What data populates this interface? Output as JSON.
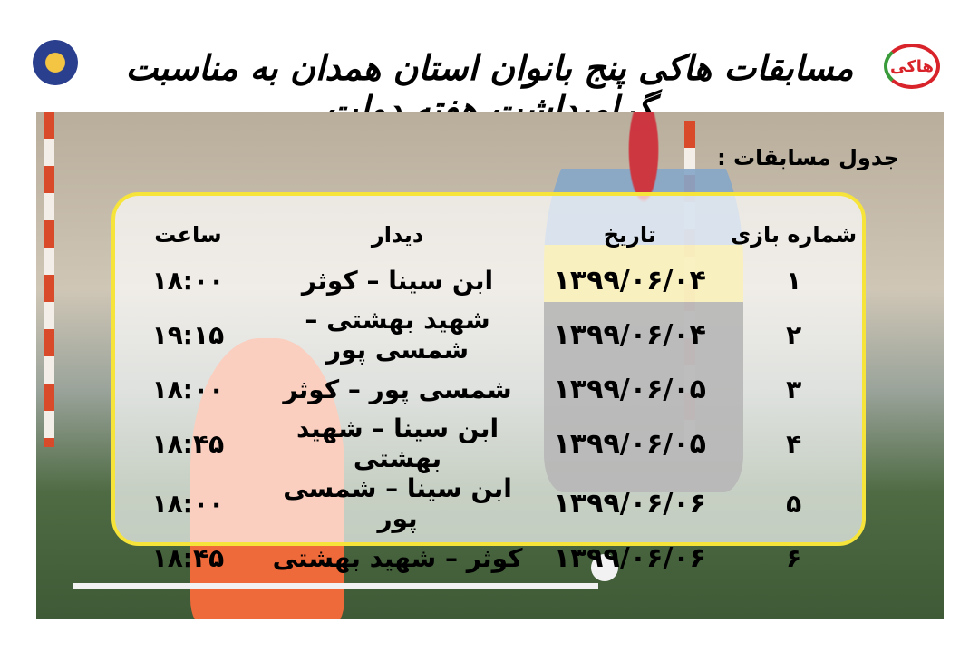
{
  "title": "مسابقات هاکی پنج بانوان استان همدان به مناسبت گرامیداشت هفته دولت",
  "logo_right_text": "هاکی",
  "schedule_heading": "جدول مسابقات :",
  "table": {
    "headers": [
      "شماره بازی",
      "تاریخ",
      "دیدار",
      "ساعت"
    ],
    "rows": [
      {
        "num": "۱",
        "date": "۱۳۹۹/۰۶/۰۴",
        "match": "ابن سینا – کوثر",
        "time": "۱۸:۰۰"
      },
      {
        "num": "۲",
        "date": "۱۳۹۹/۰۶/۰۴",
        "match": "شهید بهشتی – شمسی پور",
        "time": "۱۹:۱۵"
      },
      {
        "num": "۳",
        "date": "۱۳۹۹/۰۶/۰۵",
        "match": "شمسی پور – کوثر",
        "time": "۱۸:۰۰"
      },
      {
        "num": "۴",
        "date": "۱۳۹۹/۰۶/۰۵",
        "match": "ابن سینا – شهید بهشتی",
        "time": "۱۸:۴۵"
      },
      {
        "num": "۵",
        "date": "۱۳۹۹/۰۶/۰۶",
        "match": "ابن سینا – شمسی پور",
        "time": "۱۸:۰۰"
      },
      {
        "num": "۶",
        "date": "۱۳۹۹/۰۶/۰۶",
        "match": "کوثر – شهید بهشتی",
        "time": "۱۸:۴۵"
      }
    ]
  },
  "colors": {
    "panel_border": "#f6e43a",
    "text": "#000000"
  }
}
